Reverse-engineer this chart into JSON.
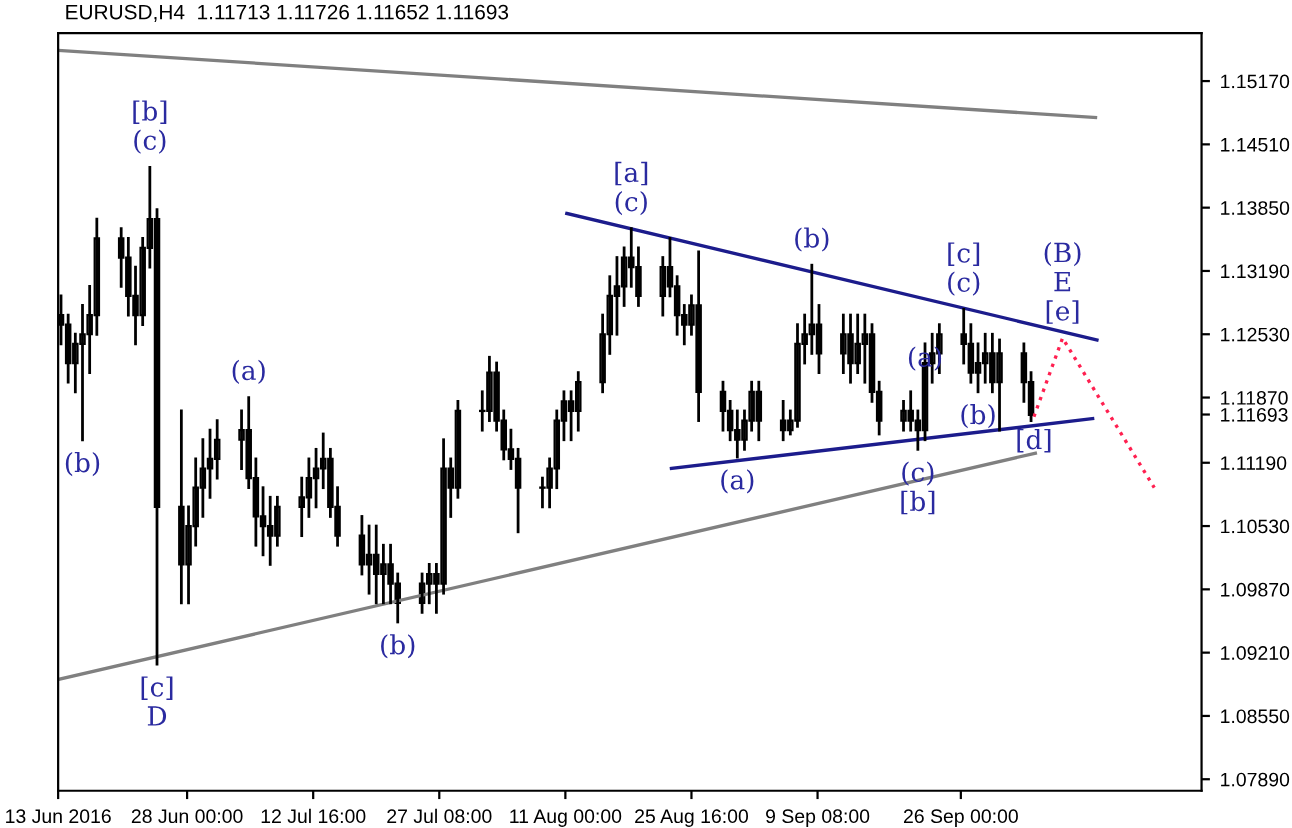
{
  "chart_data": {
    "type": "candlestick",
    "title": "EURUSD,H4  1.11713 1.11726 1.11652 1.11693",
    "x": [
      "2016-06-13T08:00",
      "2016-06-14T04:00",
      "2016-06-15T00:00",
      "2016-06-15T20:00",
      "2016-06-16T16:00",
      "2016-06-17T12:00",
      "2016-06-20T08:00",
      "2016-06-21T04:00",
      "2016-06-22T00:00",
      "2016-06-22T20:00",
      "2016-06-23T16:00",
      "2016-06-24T12:00",
      "2016-06-27T08:00",
      "2016-06-28T04:00",
      "2016-06-29T00:00",
      "2016-06-29T20:00",
      "2016-06-30T16:00",
      "2016-07-01T12:00",
      "2016-07-04T08:00",
      "2016-07-05T04:00",
      "2016-07-06T00:00",
      "2016-07-06T20:00",
      "2016-07-07T16:00",
      "2016-07-08T12:00",
      "2016-07-11T08:00",
      "2016-07-12T04:00",
      "2016-07-13T00:00",
      "2016-07-13T20:00",
      "2016-07-14T16:00",
      "2016-07-15T12:00",
      "2016-07-18T08:00",
      "2016-07-19T04:00",
      "2016-07-20T00:00",
      "2016-07-20T20:00",
      "2016-07-21T16:00",
      "2016-07-22T12:00",
      "2016-07-25T08:00",
      "2016-07-26T04:00",
      "2016-07-27T00:00",
      "2016-07-27T20:00",
      "2016-07-28T16:00",
      "2016-07-29T12:00",
      "2016-08-01T08:00",
      "2016-08-02T04:00",
      "2016-08-03T00:00",
      "2016-08-03T20:00",
      "2016-08-04T16:00",
      "2016-08-05T12:00",
      "2016-08-08T08:00",
      "2016-08-09T04:00",
      "2016-08-10T00:00",
      "2016-08-10T20:00",
      "2016-08-11T16:00",
      "2016-08-12T12:00",
      "2016-08-15T08:00",
      "2016-08-16T04:00",
      "2016-08-17T00:00",
      "2016-08-17T20:00",
      "2016-08-18T16:00",
      "2016-08-19T12:00",
      "2016-08-22T08:00",
      "2016-08-23T04:00",
      "2016-08-24T00:00",
      "2016-08-24T20:00",
      "2016-08-25T16:00",
      "2016-08-26T12:00",
      "2016-08-29T08:00",
      "2016-08-30T04:00",
      "2016-08-31T00:00",
      "2016-08-31T20:00",
      "2016-09-01T16:00",
      "2016-09-02T12:00",
      "2016-09-05T08:00",
      "2016-09-06T04:00",
      "2016-09-07T00:00",
      "2016-09-07T20:00",
      "2016-09-08T16:00",
      "2016-09-09T12:00",
      "2016-09-12T08:00",
      "2016-09-13T04:00",
      "2016-09-14T00:00",
      "2016-09-14T20:00",
      "2016-09-15T16:00",
      "2016-09-16T12:00",
      "2016-09-19T08:00",
      "2016-09-20T04:00",
      "2016-09-21T00:00",
      "2016-09-21T20:00",
      "2016-09-22T16:00",
      "2016-09-23T12:00",
      "2016-09-26T08:00",
      "2016-09-27T04:00",
      "2016-09-28T00:00",
      "2016-09-28T20:00",
      "2016-09-29T16:00",
      "2016-09-30T12:00",
      "2016-10-03T08:00",
      "2016-10-04T04:00"
    ],
    "ohlc": [
      [
        1.1273,
        1.1293,
        1.1243,
        1.1263
      ],
      [
        1.1263,
        1.1273,
        1.1203,
        1.1223
      ],
      [
        1.1223,
        1.1253,
        1.1193,
        1.1243
      ],
      [
        1.1243,
        1.1283,
        1.1143,
        1.1253
      ],
      [
        1.1253,
        1.1303,
        1.1213,
        1.1273
      ],
      [
        1.1273,
        1.1373,
        1.1253,
        1.1353
      ],
      [
        1.1353,
        1.1363,
        1.1303,
        1.1333
      ],
      [
        1.1333,
        1.1353,
        1.1273,
        1.1293
      ],
      [
        1.1293,
        1.1323,
        1.1243,
        1.1273
      ],
      [
        1.1273,
        1.1353,
        1.1263,
        1.1343
      ],
      [
        1.1343,
        1.1427,
        1.1323,
        1.1373
      ],
      [
        1.1373,
        1.1383,
        1.0909,
        1.1073
      ],
      [
        1.1073,
        1.1173,
        1.0973,
        1.1013
      ],
      [
        1.1013,
        1.1073,
        1.0973,
        1.1053
      ],
      [
        1.1053,
        1.1123,
        1.1033,
        1.1093
      ],
      [
        1.1093,
        1.1143,
        1.1063,
        1.1113
      ],
      [
        1.1113,
        1.1153,
        1.1083,
        1.1123
      ],
      [
        1.1123,
        1.1163,
        1.1103,
        1.1143
      ],
      [
        1.1143,
        1.1173,
        1.1113,
        1.1153
      ],
      [
        1.1153,
        1.1187,
        1.1093,
        1.1103
      ],
      [
        1.1103,
        1.1123,
        1.1033,
        1.1063
      ],
      [
        1.1063,
        1.1093,
        1.1023,
        1.1053
      ],
      [
        1.1053,
        1.1083,
        1.1013,
        1.1043
      ],
      [
        1.1043,
        1.1083,
        1.1033,
        1.1073
      ],
      [
        1.1073,
        1.1103,
        1.1043,
        1.1083
      ],
      [
        1.1083,
        1.1123,
        1.1063,
        1.1103
      ],
      [
        1.1103,
        1.1133,
        1.1073,
        1.1113
      ],
      [
        1.1113,
        1.1149,
        1.1093,
        1.1123
      ],
      [
        1.1123,
        1.1133,
        1.1063,
        1.1073
      ],
      [
        1.1073,
        1.1093,
        1.1033,
        1.1043
      ],
      [
        1.1043,
        1.1063,
        1.1003,
        1.1013
      ],
      [
        1.1013,
        1.1053,
        1.0983,
        1.1023
      ],
      [
        1.1023,
        1.1053,
        1.0973,
        1.1003
      ],
      [
        1.1003,
        1.1033,
        1.0973,
        1.1013
      ],
      [
        1.1013,
        1.1033,
        1.0973,
        1.0993
      ],
      [
        1.0993,
        1.1003,
        1.0953,
        1.0973
      ],
      [
        1.0973,
        1.1003,
        1.0963,
        1.0993
      ],
      [
        1.0993,
        1.1013,
        1.0973,
        1.1003
      ],
      [
        1.1003,
        1.1013,
        1.0963,
        1.0993
      ],
      [
        1.0993,
        1.1143,
        1.0983,
        1.1113
      ],
      [
        1.1113,
        1.1123,
        1.1063,
        1.1093
      ],
      [
        1.1093,
        1.1183,
        1.1083,
        1.1173
      ],
      [
        1.1173,
        1.1193,
        1.1153,
        1.1173
      ],
      [
        1.1173,
        1.1229,
        1.1163,
        1.1213
      ],
      [
        1.1213,
        1.1223,
        1.1153,
        1.1163
      ],
      [
        1.1163,
        1.1173,
        1.1123,
        1.1133
      ],
      [
        1.1133,
        1.1153,
        1.1113,
        1.1123
      ],
      [
        1.1123,
        1.1133,
        1.1047,
        1.1093
      ],
      [
        1.1093,
        1.1103,
        1.1073,
        1.1093
      ],
      [
        1.1093,
        1.1123,
        1.1073,
        1.1113
      ],
      [
        1.1113,
        1.1173,
        1.1093,
        1.1163
      ],
      [
        1.1163,
        1.1193,
        1.1143,
        1.1183
      ],
      [
        1.1183,
        1.1193,
        1.1143,
        1.1173
      ],
      [
        1.1173,
        1.1213,
        1.1153,
        1.1203
      ],
      [
        1.1203,
        1.1273,
        1.1193,
        1.1253
      ],
      [
        1.1253,
        1.1313,
        1.1233,
        1.1293
      ],
      [
        1.1293,
        1.1333,
        1.1253,
        1.1303
      ],
      [
        1.1303,
        1.1343,
        1.1283,
        1.1333
      ],
      [
        1.1333,
        1.1363,
        1.1303,
        1.1323
      ],
      [
        1.1323,
        1.1343,
        1.1283,
        1.1293
      ],
      [
        1.1293,
        1.1333,
        1.1273,
        1.1323
      ],
      [
        1.1323,
        1.1353,
        1.1293,
        1.1303
      ],
      [
        1.1303,
        1.1313,
        1.1253,
        1.1273
      ],
      [
        1.1273,
        1.1283,
        1.1243,
        1.1263
      ],
      [
        1.1263,
        1.1293,
        1.1253,
        1.1283
      ],
      [
        1.1283,
        1.1339,
        1.1163,
        1.1193
      ],
      [
        1.1193,
        1.1203,
        1.1153,
        1.1173
      ],
      [
        1.1173,
        1.1183,
        1.1143,
        1.1153
      ],
      [
        1.1153,
        1.1173,
        1.1125,
        1.1143
      ],
      [
        1.1143,
        1.1173,
        1.1133,
        1.1163
      ],
      [
        1.1163,
        1.1203,
        1.1153,
        1.1193
      ],
      [
        1.1193,
        1.1203,
        1.1143,
        1.1163
      ],
      [
        1.1163,
        1.1183,
        1.1143,
        1.1153
      ],
      [
        1.1153,
        1.1173,
        1.1149,
        1.1163
      ],
      [
        1.1163,
        1.1263,
        1.1157,
        1.1243
      ],
      [
        1.1243,
        1.1273,
        1.1223,
        1.1253
      ],
      [
        1.1253,
        1.1325,
        1.1233,
        1.1263
      ],
      [
        1.1263,
        1.1283,
        1.1213,
        1.1233
      ],
      [
        1.1233,
        1.1273,
        1.1213,
        1.1253
      ],
      [
        1.1253,
        1.1273,
        1.1203,
        1.1223
      ],
      [
        1.1223,
        1.1273,
        1.1213,
        1.1243
      ],
      [
        1.1243,
        1.1273,
        1.1203,
        1.1253
      ],
      [
        1.1253,
        1.1263,
        1.1183,
        1.1193
      ],
      [
        1.1193,
        1.1203,
        1.1149,
        1.1163
      ],
      [
        1.1163,
        1.1183,
        1.1153,
        1.1173
      ],
      [
        1.1173,
        1.1193,
        1.1153,
        1.1163
      ],
      [
        1.1163,
        1.1173,
        1.1133,
        1.1153
      ],
      [
        1.1153,
        1.1243,
        1.1143,
        1.1223
      ],
      [
        1.1223,
        1.1253,
        1.1203,
        1.1233
      ],
      [
        1.1233,
        1.1263,
        1.1213,
        1.1253
      ],
      [
        1.1253,
        1.1279,
        1.1223,
        1.1243
      ],
      [
        1.1243,
        1.1263,
        1.1203,
        1.1213
      ],
      [
        1.1213,
        1.1243,
        1.1193,
        1.1223
      ],
      [
        1.1223,
        1.1253,
        1.1203,
        1.1233
      ],
      [
        1.1233,
        1.1253,
        1.1193,
        1.1203
      ],
      [
        1.1203,
        1.1247,
        1.1153,
        1.1233
      ],
      [
        1.1233,
        1.1243,
        1.1183,
        1.1203
      ],
      [
        1.1203,
        1.1213,
        1.1163,
        1.1169
      ]
    ],
    "color": "#000000",
    "series": [
      {
        "type": "line",
        "x": [
          "2016-06-13T00:00",
          "2016-10-11T16:00"
        ],
        "values": [
          1.1549,
          1.1479
        ],
        "color": "#808080",
        "line_style": "solid"
      },
      {
        "type": "line",
        "x": [
          "2016-06-13T00:00",
          "2016-10-04T16:00"
        ],
        "values": [
          1.0893,
          1.1129
        ],
        "color": "#808080",
        "line_style": "solid"
      },
      {
        "type": "line",
        "x": [
          "2016-08-11T04:00",
          "2016-10-11T20:00"
        ],
        "values": [
          1.1379,
          1.1247
        ],
        "color": "#1c1c8c",
        "line_style": "solid"
      },
      {
        "type": "line",
        "x": [
          "2016-08-23T08:00",
          "2016-10-11T08:00"
        ],
        "values": [
          1.1113,
          1.1165
        ],
        "color": "#1c1c8c",
        "line_style": "solid"
      },
      {
        "type": "line",
        "x": [
          "2016-10-04T12:00",
          "2016-10-07T20:00",
          "2016-10-18T12:00"
        ],
        "values": [
          1.1167,
          1.1249,
          1.1093
        ],
        "color": "#ff2050",
        "line_style": "dotted"
      }
    ],
    "annotations": [
      {
        "text": "(c)",
        "x": "2016-06-23T16:00",
        "y": 1.1427
      },
      {
        "text": "[b]",
        "x": "2016-06-23T16:00",
        "y": 1.1427
      },
      {
        "text": "(b)",
        "x": "2016-06-15T20:00",
        "y": 1.1143
      },
      {
        "text": "(a)",
        "x": "2016-07-05T04:00",
        "y": 1.1187
      },
      {
        "text": "[c]",
        "x": "2016-06-24T12:00",
        "y": 1.0909
      },
      {
        "text": "D",
        "x": "2016-06-24T12:00",
        "y": 1.0909
      },
      {
        "text": "(b)",
        "x": "2016-07-22T12:00",
        "y": 1.0953
      },
      {
        "text": "(c)",
        "x": "2016-08-18T16:00",
        "y": 1.1363
      },
      {
        "text": "[a]",
        "x": "2016-08-18T16:00",
        "y": 1.1363
      },
      {
        "text": "(b)",
        "x": "2016-09-08T16:00",
        "y": 1.1325
      },
      {
        "text": "(a)",
        "x": "2016-08-31T00:00",
        "y": 1.1125
      },
      {
        "text": "(c)",
        "x": "2016-09-26T08:00",
        "y": 1.1279
      },
      {
        "text": "[c]",
        "x": "2016-09-26T08:00",
        "y": 1.1279
      },
      {
        "text": "(a)",
        "x": "2016-09-21T20:00",
        "y": 1.1253
      },
      {
        "text": "(b)",
        "x": "2016-09-28T00:00",
        "y": 1.1193
      },
      {
        "text": "(c)",
        "x": "2016-09-21T00:00",
        "y": 1.1133
      },
      {
        "text": "[b]",
        "x": "2016-09-21T00:00",
        "y": 1.1133
      },
      {
        "text": "[d]",
        "x": "2016-10-04T12:00",
        "y": 1.1167
      },
      {
        "text": "[e]",
        "x": "2016-10-07T20:00",
        "y": 1.1249
      },
      {
        "text": "E",
        "x": "2016-10-07T20:00",
        "y": 1.1249
      },
      {
        "text": "(B)",
        "x": "2016-10-07T20:00",
        "y": 1.1249
      }
    ],
    "xlim": [
      "2016-06-13T00:00",
      "2016-10-24T00:00"
    ],
    "ylim": [
      1.0777,
      1.1567
    ],
    "xticks": [
      {
        "value": "2016-06-13T00:00",
        "label": "13 Jun 2016"
      },
      {
        "value": "2016-06-28T00:00",
        "label": "28 Jun 00:00"
      },
      {
        "value": "2016-07-12T16:00",
        "label": "12 Jul 16:00"
      },
      {
        "value": "2016-07-27T08:00",
        "label": "27 Jul 08:00"
      },
      {
        "value": "2016-08-11T00:00",
        "label": "11 Aug 00:00"
      },
      {
        "value": "2016-08-25T16:00",
        "label": "25 Aug 16:00"
      },
      {
        "value": "2016-09-09T08:00",
        "label": "9 Sep 08:00"
      },
      {
        "value": "2016-09-26T00:00",
        "label": "26 Sep 00:00"
      }
    ],
    "yticks": [
      {
        "value": 1.1517,
        "label": "1.15170"
      },
      {
        "value": 1.1451,
        "label": "1.14510"
      },
      {
        "value": 1.1385,
        "label": "1.13850"
      },
      {
        "value": 1.1319,
        "label": "1.13190"
      },
      {
        "value": 1.1253,
        "label": "1.12530"
      },
      {
        "value": 1.1187,
        "label": "1.11870"
      },
      {
        "value": 1.11693,
        "label": "1.11693"
      },
      {
        "value": 1.1119,
        "label": "1.11190"
      },
      {
        "value": 1.1053,
        "label": "1.10530"
      },
      {
        "value": 1.0987,
        "label": "1.09870"
      },
      {
        "value": 1.0921,
        "label": "1.09210"
      },
      {
        "value": 1.0855,
        "label": "1.08550"
      },
      {
        "value": 1.0789,
        "label": "1.07890"
      }
    ],
    "grid": false
  }
}
